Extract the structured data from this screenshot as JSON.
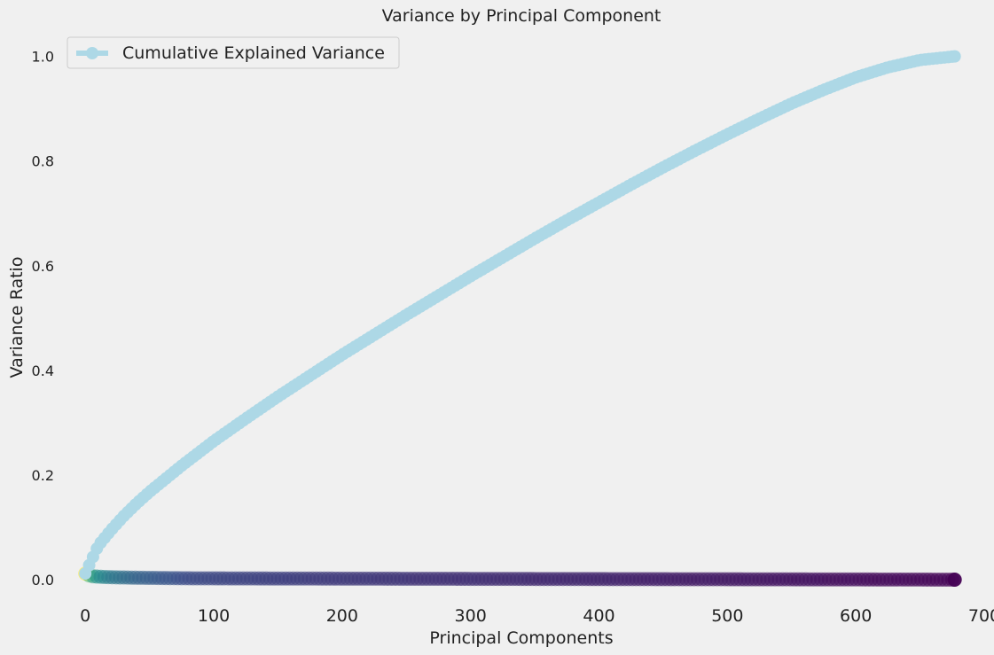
{
  "chart_data": {
    "type": "scatter",
    "title": "Variance by Principal Component",
    "xlabel": "Principal Components",
    "ylabel": "Variance Ratio",
    "xlim": [
      -25,
      700
    ],
    "ylim": [
      -0.02,
      1.04
    ],
    "xticks": [
      0,
      100,
      200,
      300,
      400,
      500,
      600,
      700
    ],
    "yticks": [
      0.0,
      0.2,
      0.4,
      0.6,
      0.8,
      1.0
    ],
    "xtick_labels": [
      "0",
      "100",
      "200",
      "300",
      "400",
      "500",
      "600",
      "700"
    ],
    "ytick_labels": [
      "0.0",
      "0.2",
      "0.4",
      "0.6",
      "0.8",
      "1.0"
    ],
    "grid": false,
    "legend": {
      "position": "top-left",
      "entries": [
        "Cumulative Explained Variance"
      ]
    },
    "series": [
      {
        "name": "Cumulative Explained Variance",
        "kind": "line-with-markers",
        "color": "#add8e6",
        "x": [
          0,
          10,
          20,
          30,
          40,
          50,
          75,
          100,
          125,
          150,
          175,
          200,
          225,
          250,
          275,
          300,
          325,
          350,
          375,
          400,
          425,
          450,
          475,
          500,
          525,
          550,
          575,
          600,
          625,
          650,
          677
        ],
        "y": [
          0.012,
          0.065,
          0.095,
          0.122,
          0.146,
          0.168,
          0.218,
          0.265,
          0.308,
          0.35,
          0.39,
          0.43,
          0.468,
          0.506,
          0.543,
          0.58,
          0.616,
          0.652,
          0.687,
          0.721,
          0.755,
          0.788,
          0.82,
          0.851,
          0.881,
          0.91,
          0.936,
          0.96,
          0.979,
          0.993,
          1.0
        ]
      },
      {
        "kind": "scatter-colormap",
        "colormap": "viridis",
        "x": [
          0,
          2,
          5,
          10,
          15,
          20,
          30,
          40,
          60,
          80,
          100,
          150,
          200,
          250,
          300,
          350,
          400,
          450,
          500,
          550,
          600,
          650,
          677
        ],
        "y": [
          0.012,
          0.009,
          0.007,
          0.006,
          0.0055,
          0.005,
          0.0045,
          0.004,
          0.0035,
          0.003,
          0.0028,
          0.0025,
          0.0023,
          0.0021,
          0.0019,
          0.0017,
          0.0015,
          0.0013,
          0.0011,
          0.0009,
          0.0007,
          0.0005,
          0.0003
        ]
      }
    ]
  }
}
